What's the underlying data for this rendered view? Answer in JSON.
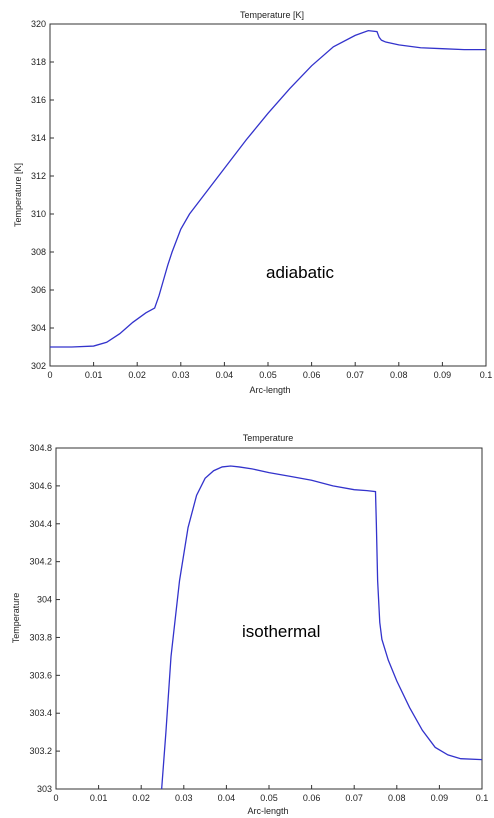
{
  "chart_data": [
    {
      "type": "line",
      "title": "Temperature [K]",
      "xlabel": "Arc-length",
      "ylabel": "Temperature [K]",
      "xlim": [
        0,
        0.1
      ],
      "ylim": [
        302,
        320
      ],
      "xticks": [
        "0",
        "0.01",
        "0.02",
        "0.03",
        "0.04",
        "0.05",
        "0.06",
        "0.07",
        "0.08",
        "0.09",
        "0.1"
      ],
      "yticks": [
        "302",
        "304",
        "306",
        "308",
        "310",
        "312",
        "314",
        "316",
        "318",
        "320"
      ],
      "annotation": "adiabatic",
      "grid": false,
      "series": [
        {
          "color": "#3333cc",
          "x": [
            0,
            0.005,
            0.01,
            0.013,
            0.016,
            0.019,
            0.022,
            0.024,
            0.025,
            0.026,
            0.027,
            0.028,
            0.03,
            0.032,
            0.035,
            0.04,
            0.045,
            0.05,
            0.055,
            0.06,
            0.065,
            0.07,
            0.073,
            0.075,
            0.0755,
            0.076,
            0.077,
            0.08,
            0.085,
            0.09,
            0.095,
            0.1
          ],
          "y": [
            303.0,
            303.0,
            303.05,
            303.25,
            303.7,
            304.3,
            304.8,
            305.05,
            305.7,
            306.5,
            307.3,
            308.0,
            309.2,
            310.0,
            310.9,
            312.4,
            313.9,
            315.3,
            316.6,
            317.8,
            318.8,
            319.4,
            319.65,
            319.6,
            319.3,
            319.15,
            319.05,
            318.9,
            318.75,
            318.7,
            318.65,
            318.65
          ]
        }
      ]
    },
    {
      "type": "line",
      "title": "Temperature",
      "xlabel": "Arc-length",
      "ylabel": "Temperature",
      "xlim": [
        0,
        0.1
      ],
      "ylim": [
        303,
        304.8
      ],
      "xticks": [
        "0",
        "0.01",
        "0.02",
        "0.03",
        "0.04",
        "0.05",
        "0.06",
        "0.07",
        "0.08",
        "0.09",
        "0.1"
      ],
      "yticks": [
        "303",
        "303.2",
        "303.4",
        "303.6",
        "303.8",
        "304",
        "304.2",
        "304.4",
        "304.6",
        "304.8"
      ],
      "annotation": "isothermal",
      "grid": false,
      "series": [
        {
          "color": "#3333cc",
          "x": [
            0.0248,
            0.0258,
            0.027,
            0.029,
            0.031,
            0.033,
            0.035,
            0.037,
            0.039,
            0.041,
            0.043,
            0.046,
            0.05,
            0.055,
            0.06,
            0.065,
            0.07,
            0.073,
            0.075,
            0.0752,
            0.0755,
            0.076,
            0.0765,
            0.078,
            0.08,
            0.083,
            0.086,
            0.089,
            0.092,
            0.095,
            0.1
          ],
          "y": [
            303.0,
            303.3,
            303.7,
            304.1,
            304.38,
            304.55,
            304.64,
            304.68,
            304.7,
            304.705,
            304.7,
            304.69,
            304.67,
            304.65,
            304.63,
            304.6,
            304.58,
            304.575,
            304.57,
            304.4,
            304.1,
            303.88,
            303.79,
            303.68,
            303.57,
            303.43,
            303.31,
            303.22,
            303.18,
            303.16,
            303.155
          ]
        }
      ]
    }
  ]
}
